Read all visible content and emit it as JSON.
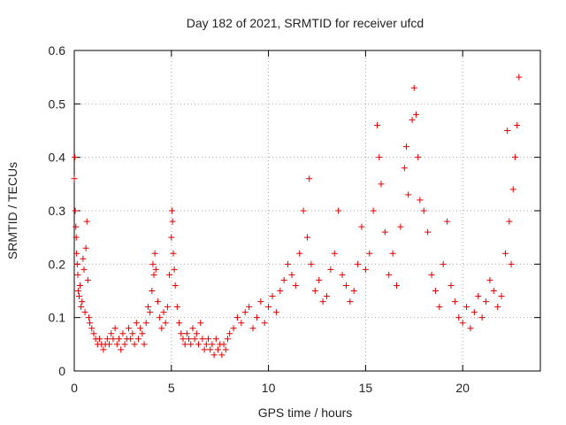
{
  "chart_data": {
    "type": "scatter",
    "title": "Day 182 of 2021, SRMTID for receiver ufcd",
    "xlabel": "GPS time / hours",
    "ylabel": "SRMTID / TECUs",
    "xlim": [
      0,
      24
    ],
    "ylim": [
      0,
      0.6
    ],
    "x_ticks": [
      0,
      5,
      10,
      15,
      20
    ],
    "x_tick_labels": [
      "0",
      "5",
      "10",
      "15",
      "20"
    ],
    "y_ticks": [
      0,
      0.1,
      0.2,
      0.3,
      0.4,
      0.5,
      0.6
    ],
    "y_tick_labels": [
      "0",
      "0.1",
      "0.2",
      "0.3",
      "0.4",
      "0.5",
      "0.6"
    ],
    "grid": true,
    "marker": "+",
    "marker_color": "#e00000",
    "series": [
      {
        "name": "SRMTID",
        "points": [
          [
            0.0,
            0.36
          ],
          [
            0.03,
            0.4
          ],
          [
            0.05,
            0.3
          ],
          [
            0.08,
            0.27
          ],
          [
            0.1,
            0.25
          ],
          [
            0.12,
            0.22
          ],
          [
            0.15,
            0.2
          ],
          [
            0.18,
            0.18
          ],
          [
            0.2,
            0.15
          ],
          [
            0.25,
            0.14
          ],
          [
            0.3,
            0.16
          ],
          [
            0.35,
            0.12
          ],
          [
            0.4,
            0.13
          ],
          [
            0.45,
            0.21
          ],
          [
            0.5,
            0.19
          ],
          [
            0.55,
            0.11
          ],
          [
            0.6,
            0.23
          ],
          [
            0.65,
            0.28
          ],
          [
            0.7,
            0.17
          ],
          [
            0.75,
            0.1
          ],
          [
            0.8,
            0.09
          ],
          [
            0.9,
            0.08
          ],
          [
            1.0,
            0.07
          ],
          [
            1.1,
            0.06
          ],
          [
            1.2,
            0.05
          ],
          [
            1.3,
            0.06
          ],
          [
            1.4,
            0.05
          ],
          [
            1.5,
            0.04
          ],
          [
            1.6,
            0.05
          ],
          [
            1.7,
            0.06
          ],
          [
            1.8,
            0.05
          ],
          [
            1.9,
            0.07
          ],
          [
            2.0,
            0.06
          ],
          [
            2.1,
            0.08
          ],
          [
            2.2,
            0.05
          ],
          [
            2.3,
            0.06
          ],
          [
            2.4,
            0.04
          ],
          [
            2.5,
            0.07
          ],
          [
            2.6,
            0.05
          ],
          [
            2.7,
            0.06
          ],
          [
            2.8,
            0.08
          ],
          [
            2.9,
            0.06
          ],
          [
            3.0,
            0.07
          ],
          [
            3.1,
            0.05
          ],
          [
            3.2,
            0.09
          ],
          [
            3.3,
            0.06
          ],
          [
            3.4,
            0.08
          ],
          [
            3.5,
            0.07
          ],
          [
            3.6,
            0.05
          ],
          [
            3.7,
            0.09
          ],
          [
            3.8,
            0.12
          ],
          [
            3.9,
            0.11
          ],
          [
            4.0,
            0.15
          ],
          [
            4.05,
            0.2
          ],
          [
            4.1,
            0.18
          ],
          [
            4.15,
            0.22
          ],
          [
            4.2,
            0.19
          ],
          [
            4.3,
            0.13
          ],
          [
            4.4,
            0.1
          ],
          [
            4.5,
            0.08
          ],
          [
            4.6,
            0.11
          ],
          [
            4.7,
            0.09
          ],
          [
            4.8,
            0.12
          ],
          [
            4.9,
            0.18
          ],
          [
            5.0,
            0.25
          ],
          [
            5.03,
            0.3
          ],
          [
            5.06,
            0.28
          ],
          [
            5.1,
            0.22
          ],
          [
            5.15,
            0.19
          ],
          [
            5.2,
            0.16
          ],
          [
            5.3,
            0.12
          ],
          [
            5.4,
            0.09
          ],
          [
            5.5,
            0.07
          ],
          [
            5.6,
            0.06
          ],
          [
            5.7,
            0.05
          ],
          [
            5.8,
            0.07
          ],
          [
            5.9,
            0.06
          ],
          [
            6.0,
            0.05
          ],
          [
            6.1,
            0.08
          ],
          [
            6.2,
            0.06
          ],
          [
            6.3,
            0.07
          ],
          [
            6.4,
            0.05
          ],
          [
            6.5,
            0.09
          ],
          [
            6.6,
            0.06
          ],
          [
            6.7,
            0.04
          ],
          [
            6.8,
            0.05
          ],
          [
            6.9,
            0.06
          ],
          [
            7.0,
            0.04
          ],
          [
            7.1,
            0.05
          ],
          [
            7.2,
            0.03
          ],
          [
            7.3,
            0.06
          ],
          [
            7.4,
            0.04
          ],
          [
            7.5,
            0.05
          ],
          [
            7.6,
            0.03
          ],
          [
            7.7,
            0.05
          ],
          [
            7.8,
            0.04
          ],
          [
            7.9,
            0.06
          ],
          [
            8.0,
            0.07
          ],
          [
            8.2,
            0.08
          ],
          [
            8.4,
            0.1
          ],
          [
            8.6,
            0.09
          ],
          [
            8.8,
            0.11
          ],
          [
            9.0,
            0.12
          ],
          [
            9.2,
            0.08
          ],
          [
            9.4,
            0.1
          ],
          [
            9.6,
            0.13
          ],
          [
            9.8,
            0.09
          ],
          [
            10.0,
            0.12
          ],
          [
            10.2,
            0.14
          ],
          [
            10.4,
            0.11
          ],
          [
            10.6,
            0.15
          ],
          [
            10.8,
            0.17
          ],
          [
            11.0,
            0.2
          ],
          [
            11.2,
            0.18
          ],
          [
            11.4,
            0.16
          ],
          [
            11.6,
            0.22
          ],
          [
            11.8,
            0.3
          ],
          [
            12.0,
            0.25
          ],
          [
            12.1,
            0.36
          ],
          [
            12.2,
            0.2
          ],
          [
            12.4,
            0.15
          ],
          [
            12.6,
            0.17
          ],
          [
            12.8,
            0.13
          ],
          [
            13.0,
            0.14
          ],
          [
            13.2,
            0.19
          ],
          [
            13.4,
            0.22
          ],
          [
            13.6,
            0.3
          ],
          [
            13.8,
            0.18
          ],
          [
            14.0,
            0.16
          ],
          [
            14.2,
            0.13
          ],
          [
            14.4,
            0.15
          ],
          [
            14.6,
            0.2
          ],
          [
            14.8,
            0.27
          ],
          [
            15.0,
            0.19
          ],
          [
            15.2,
            0.22
          ],
          [
            15.4,
            0.3
          ],
          [
            15.6,
            0.46
          ],
          [
            15.7,
            0.4
          ],
          [
            15.8,
            0.35
          ],
          [
            16.0,
            0.26
          ],
          [
            16.2,
            0.18
          ],
          [
            16.4,
            0.22
          ],
          [
            16.6,
            0.16
          ],
          [
            16.8,
            0.27
          ],
          [
            17.0,
            0.38
          ],
          [
            17.1,
            0.42
          ],
          [
            17.2,
            0.33
          ],
          [
            17.4,
            0.47
          ],
          [
            17.5,
            0.53
          ],
          [
            17.6,
            0.48
          ],
          [
            17.7,
            0.4
          ],
          [
            17.8,
            0.32
          ],
          [
            18.0,
            0.3
          ],
          [
            18.2,
            0.26
          ],
          [
            18.4,
            0.18
          ],
          [
            18.6,
            0.15
          ],
          [
            18.8,
            0.12
          ],
          [
            19.0,
            0.2
          ],
          [
            19.2,
            0.28
          ],
          [
            19.4,
            0.16
          ],
          [
            19.6,
            0.13
          ],
          [
            19.8,
            0.1
          ],
          [
            20.0,
            0.09
          ],
          [
            20.2,
            0.12
          ],
          [
            20.4,
            0.08
          ],
          [
            20.6,
            0.11
          ],
          [
            20.8,
            0.14
          ],
          [
            21.0,
            0.1
          ],
          [
            21.2,
            0.13
          ],
          [
            21.4,
            0.17
          ],
          [
            21.6,
            0.15
          ],
          [
            21.8,
            0.12
          ],
          [
            22.0,
            0.14
          ],
          [
            22.2,
            0.22
          ],
          [
            22.3,
            0.45
          ],
          [
            22.4,
            0.28
          ],
          [
            22.5,
            0.2
          ],
          [
            22.6,
            0.34
          ],
          [
            22.7,
            0.4
          ],
          [
            22.8,
            0.46
          ],
          [
            22.9,
            0.55
          ]
        ]
      }
    ]
  }
}
